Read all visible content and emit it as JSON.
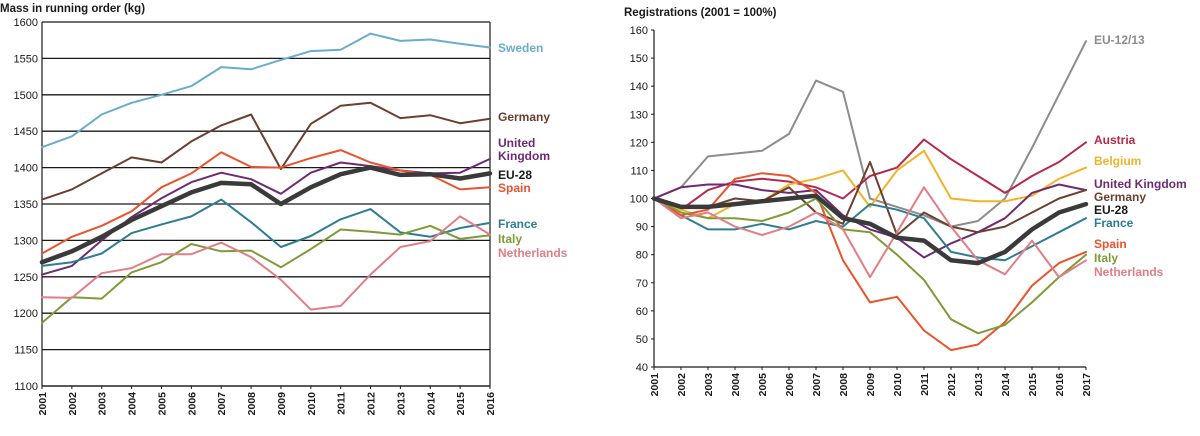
{
  "chart_data": [
    {
      "type": "line",
      "title": "Mass in running order (kg)",
      "xlabel": "",
      "ylabel": "Mass in running order (kg)",
      "x": [
        "2001",
        "2002",
        "2003",
        "2004",
        "2005",
        "2006",
        "2007",
        "2008",
        "2009",
        "2010",
        "2011",
        "2012",
        "2013",
        "2014",
        "2015",
        "2016"
      ],
      "ylim": [
        1100,
        1600
      ],
      "yticks": [
        1100,
        1150,
        1200,
        1250,
        1300,
        1350,
        1400,
        1450,
        1500,
        1550,
        1600
      ],
      "grid": true,
      "series": [
        {
          "name": "Sweden",
          "label": "Sweden",
          "color": "#6aaccd",
          "width": 2,
          "values": [
            1428,
            1443,
            1473,
            1489,
            1500,
            1512,
            1538,
            1535,
            1548,
            1560,
            1562,
            1584,
            1574,
            1576,
            1570,
            1565
          ]
        },
        {
          "name": "Germany",
          "label": "Germany",
          "color": "#6b4030",
          "width": 2,
          "values": [
            1356,
            1370,
            1392,
            1414,
            1407,
            1436,
            1458,
            1473,
            1398,
            1460,
            1485,
            1489,
            1468,
            1472,
            1461,
            1467
          ]
        },
        {
          "name": "United Kingdom",
          "label": "United\nKingdom",
          "color": "#6e2a72",
          "width": 2,
          "values": [
            1253,
            1265,
            1300,
            1332,
            1358,
            1380,
            1393,
            1384,
            1364,
            1393,
            1407,
            1402,
            1396,
            1392,
            1393,
            1412
          ]
        },
        {
          "name": "EU-28",
          "label": "EU-28",
          "color": "#3a3a3a",
          "width": 4.5,
          "values": [
            1270,
            1285,
            1305,
            1328,
            1347,
            1366,
            1379,
            1377,
            1350,
            1373,
            1391,
            1400,
            1390,
            1391,
            1385,
            1392
          ]
        },
        {
          "name": "Spain",
          "label": "Spain",
          "color": "#e8542e",
          "width": 2,
          "values": [
            1282,
            1305,
            1320,
            1340,
            1373,
            1392,
            1421,
            1401,
            1400,
            1413,
            1424,
            1407,
            1396,
            1390,
            1370,
            1373
          ]
        },
        {
          "name": "France",
          "label": "France",
          "color": "#2e7d94",
          "width": 2,
          "values": [
            1265,
            1270,
            1282,
            1310,
            1322,
            1333,
            1356,
            1325,
            1291,
            1306,
            1329,
            1343,
            1311,
            1305,
            1317,
            1324
          ]
        },
        {
          "name": "Italy",
          "label": "Italy",
          "color": "#7f9a37",
          "width": 2,
          "values": [
            1187,
            1222,
            1220,
            1256,
            1270,
            1295,
            1285,
            1286,
            1263,
            1288,
            1315,
            1312,
            1308,
            1320,
            1302,
            1307
          ]
        },
        {
          "name": "Netherlands",
          "label": "Netherlands",
          "color": "#e07e86",
          "width": 2,
          "values": [
            1222,
            1221,
            1255,
            1262,
            1281,
            1281,
            1297,
            1277,
            1246,
            1205,
            1210,
            1253,
            1291,
            1299,
            1333,
            1308
          ]
        }
      ]
    },
    {
      "type": "line",
      "title": "Registrations (2001 = 100%)",
      "xlabel": "",
      "ylabel": "Registrations (2001 = 100%)",
      "x": [
        "2001",
        "2002",
        "2003",
        "2004",
        "2005",
        "2006",
        "2007",
        "2008",
        "2009",
        "2010",
        "2011",
        "2012",
        "2013",
        "2014",
        "2015",
        "2016",
        "2017"
      ],
      "ylim": [
        40,
        160
      ],
      "yticks": [
        40,
        50,
        60,
        70,
        80,
        90,
        100,
        110,
        120,
        130,
        140,
        150,
        160
      ],
      "grid": false,
      "series": [
        {
          "name": "EU-12/13",
          "label": "EU-12/13",
          "color": "#8c8c8c",
          "width": 2,
          "values": [
            100,
            104,
            115,
            116,
            117,
            123,
            142,
            138,
            100,
            97,
            94,
            90,
            92,
            100,
            118,
            137,
            156
          ]
        },
        {
          "name": "Austria",
          "label": "Austria",
          "color": "#b5294c",
          "width": 2,
          "values": [
            100,
            96,
            103,
            106,
            107,
            106,
            104,
            100,
            108,
            111,
            121,
            114,
            108,
            102,
            108,
            113,
            120
          ]
        },
        {
          "name": "Belgium",
          "label": "Belgium",
          "color": "#f1b327",
          "width": 2,
          "values": [
            100,
            96,
            93,
            98,
            99,
            105,
            107,
            110,
            97,
            110,
            117,
            100,
            99,
            99,
            101,
            107,
            111
          ]
        },
        {
          "name": "United Kingdom",
          "label": "United Kingdom",
          "color": "#6e2a72",
          "width": 2,
          "values": [
            100,
            104,
            105,
            105,
            103,
            102,
            103,
            94,
            89,
            86,
            79,
            84,
            88,
            93,
            102,
            105,
            103
          ]
        },
        {
          "name": "Germany",
          "label": "Germany",
          "color": "#6b4030",
          "width": 2,
          "values": [
            100,
            97,
            97,
            100,
            99,
            104,
            95,
            91,
            113,
            87,
            95,
            90,
            88,
            90,
            95,
            100,
            103
          ]
        },
        {
          "name": "EU-28",
          "label": "EU-28",
          "color": "#3a3a3a",
          "width": 4.5,
          "values": [
            100,
            97,
            97,
            98,
            99,
            100,
            101,
            93,
            91,
            86,
            85,
            78,
            77,
            81,
            89,
            95,
            98
          ]
        },
        {
          "name": "France",
          "label": "France",
          "color": "#2e7d94",
          "width": 2,
          "values": [
            100,
            94,
            89,
            89,
            91,
            89,
            92,
            90,
            98,
            96,
            93,
            81,
            79,
            78,
            83,
            88,
            93
          ]
        },
        {
          "name": "Spain",
          "label": "Spain",
          "color": "#e8542e",
          "width": 2,
          "values": [
            100,
            94,
            96,
            107,
            109,
            108,
            102,
            78,
            63,
            65,
            53,
            46,
            48,
            56,
            69,
            77,
            81
          ]
        },
        {
          "name": "Italy",
          "label": "Italy",
          "color": "#7f9a37",
          "width": 2,
          "values": [
            100,
            95,
            93,
            93,
            92,
            95,
            100,
            89,
            88,
            80,
            71,
            57,
            52,
            55,
            63,
            72,
            80
          ]
        },
        {
          "name": "Netherlands",
          "label": "Netherlands",
          "color": "#e07e86",
          "width": 2,
          "values": [
            100,
            93,
            95,
            90,
            87,
            90,
            95,
            89,
            72,
            88,
            104,
            90,
            78,
            73,
            85,
            72,
            78
          ]
        }
      ]
    }
  ]
}
